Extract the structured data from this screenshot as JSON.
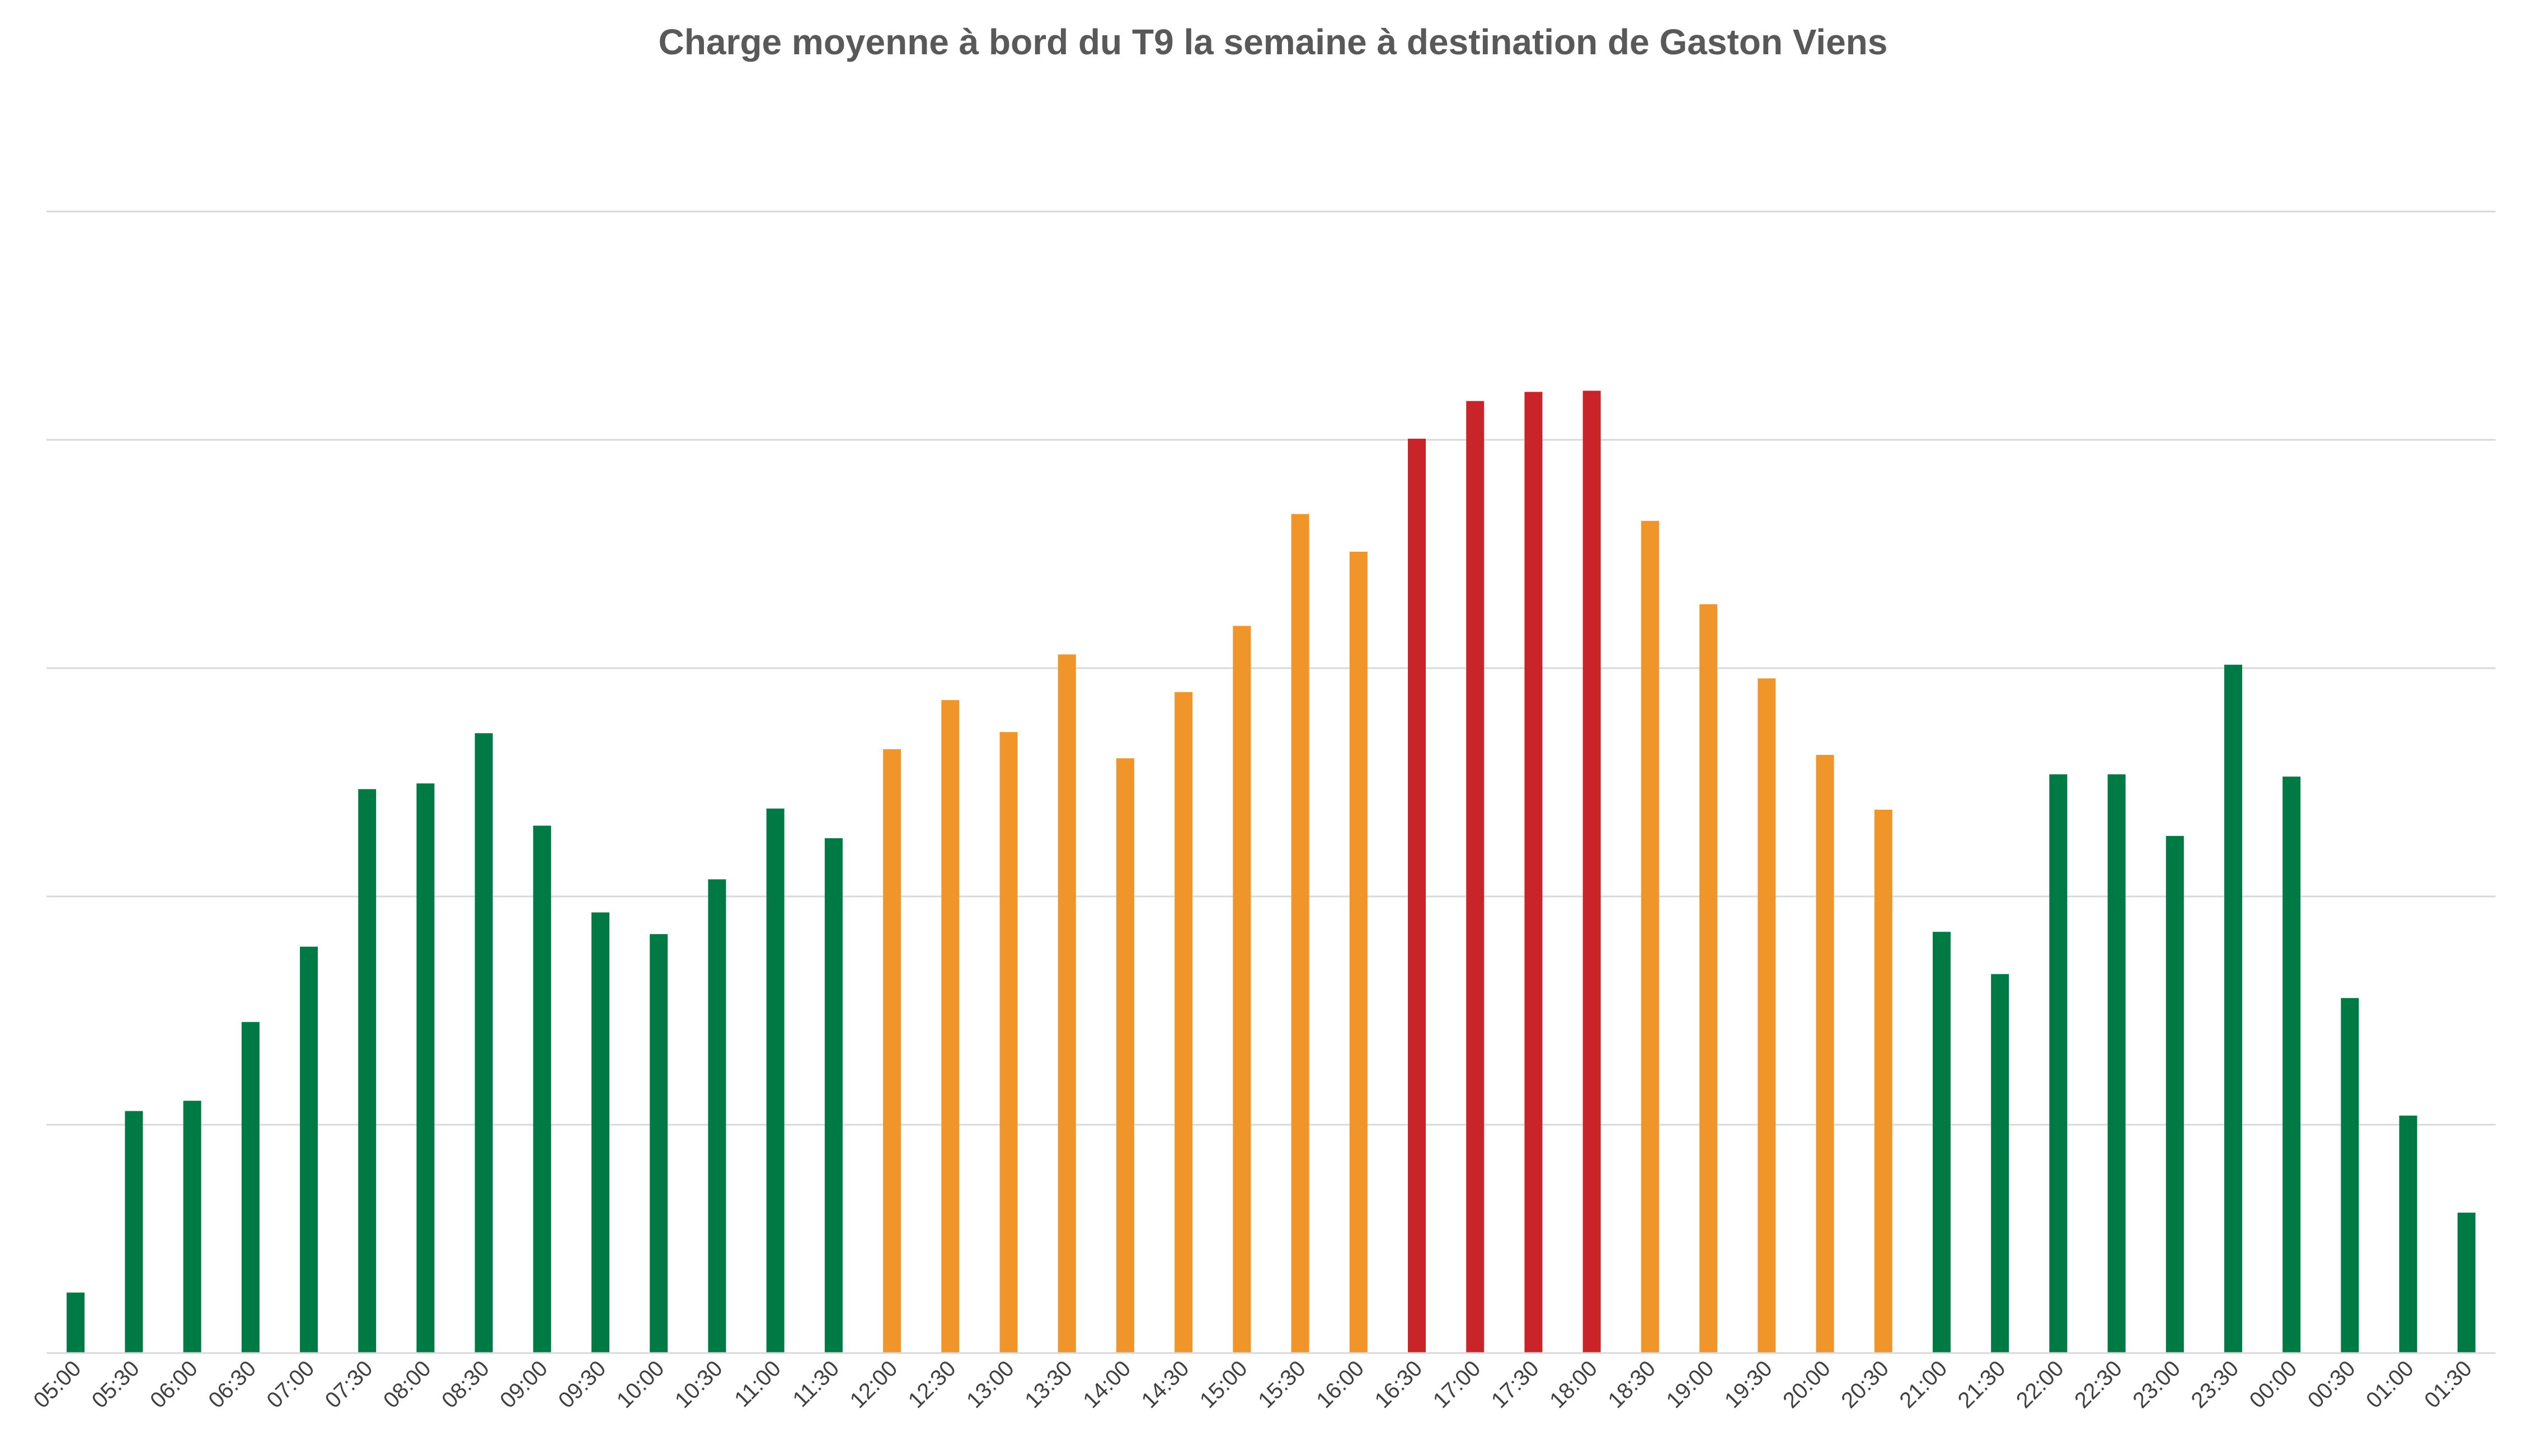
{
  "chart_data": {
    "type": "bar",
    "title": "Charge moyenne à bord du T9 la semaine à destination de Gaston Viens",
    "xlabel": "",
    "ylabel": "",
    "ylim": [
      0,
      100
    ],
    "y_gridlines": [
      20,
      40,
      60,
      80,
      100
    ],
    "y_tick_labels_shown": false,
    "legend": "none",
    "grid": true,
    "colors": {
      "green": "#007A45",
      "orange": "#F0952A",
      "red": "#C8242A",
      "gridline": "#D9D9D9",
      "text": "#595959",
      "tick_text": "#404040"
    },
    "categories": [
      "05:00",
      "05:30",
      "06:00",
      "06:30",
      "07:00",
      "07:30",
      "08:00",
      "08:30",
      "09:00",
      "09:30",
      "10:00",
      "10:30",
      "11:00",
      "11:30",
      "12:00",
      "12:30",
      "13:00",
      "13:30",
      "14:00",
      "14:30",
      "15:00",
      "15:30",
      "16:00",
      "16:30",
      "17:00",
      "17:30",
      "18:00",
      "18:30",
      "19:00",
      "19:30",
      "20:00",
      "20:30",
      "21:00",
      "21:30",
      "22:00",
      "22:30",
      "23:00",
      "23:30",
      "00:00",
      "00:30",
      "01:00",
      "01:30"
    ],
    "values": [
      5.3,
      21.2,
      22.1,
      29,
      35.6,
      49.4,
      49.9,
      54.3,
      46.2,
      38.6,
      36.7,
      41.5,
      47.7,
      45.1,
      52.9,
      57.2,
      54.4,
      61.2,
      52.1,
      57.9,
      63.7,
      73.5,
      70.2,
      80.1,
      83.4,
      84.2,
      84.3,
      72.9,
      65.6,
      59.1,
      52.4,
      47.6,
      36.9,
      33.2,
      50.7,
      50.7,
      45.3,
      60.3,
      50.5,
      31.1,
      20.8,
      12.3
    ],
    "bar_colors": [
      "green",
      "green",
      "green",
      "green",
      "green",
      "green",
      "green",
      "green",
      "green",
      "green",
      "green",
      "green",
      "green",
      "green",
      "orange",
      "orange",
      "orange",
      "orange",
      "orange",
      "orange",
      "orange",
      "orange",
      "orange",
      "red",
      "red",
      "red",
      "red",
      "orange",
      "orange",
      "orange",
      "orange",
      "orange",
      "green",
      "green",
      "green",
      "green",
      "green",
      "green",
      "green",
      "green",
      "green",
      "green"
    ]
  }
}
